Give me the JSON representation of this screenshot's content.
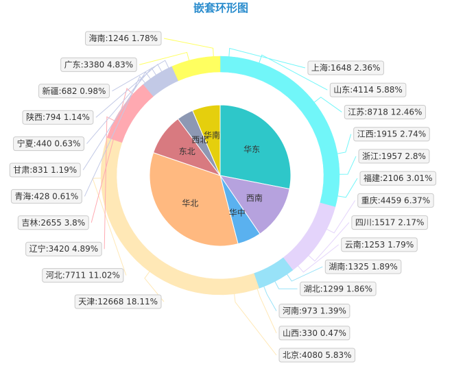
{
  "chart_data": {
    "type": "pie",
    "title": "嵌套环形图",
    "inner": [
      {
        "name": "华东",
        "value": 20255,
        "color": "#2ec7c9"
      },
      {
        "name": "西南",
        "value": 8994,
        "color": "#b6a2de"
      },
      {
        "name": "华中",
        "value": 3927,
        "color": "#5ab1ef"
      },
      {
        "name": "华北",
        "value": 24789,
        "color": "#ffb980"
      },
      {
        "name": "东北",
        "value": 6906,
        "color": "#d87a80"
      },
      {
        "name": "西北",
        "value": 2735,
        "color": "#8d98b3"
      },
      {
        "name": "华南",
        "value": 4626,
        "color": "#e5cf0d"
      }
    ],
    "outer": [
      {
        "name": "上海",
        "value": 1648,
        "percent": "2.36%",
        "label": "上海:1648 2.36%",
        "color": "#71f6f9"
      },
      {
        "name": "山东",
        "value": 4114,
        "percent": "5.88%",
        "label": "山东:4114 5.88%",
        "color": "#71f6f9"
      },
      {
        "name": "江苏",
        "value": 8718,
        "percent": "12.46%",
        "label": "江苏:8718 12.46%",
        "color": "#71f6f9"
      },
      {
        "name": "江西",
        "value": 1915,
        "percent": "2.74%",
        "label": "江西:1915 2.74%",
        "color": "#71f6f9"
      },
      {
        "name": "浙江",
        "value": 1957,
        "percent": "2.8%",
        "label": "浙江:1957 2.8%",
        "color": "#71f6f9"
      },
      {
        "name": "福建",
        "value": 2106,
        "percent": "3.01%",
        "label": "福建:2106 3.01%",
        "color": "#71f6f9"
      },
      {
        "name": "重庆",
        "value": 4459,
        "percent": "6.37%",
        "label": "重庆:4459 6.37%",
        "color": "#e4d4fb"
      },
      {
        "name": "四川",
        "value": 1517,
        "percent": "2.17%",
        "label": "四川:1517 2.17%",
        "color": "#e4d4fb"
      },
      {
        "name": "云南",
        "value": 1253,
        "percent": "1.79%",
        "label": "云南:1253 1.79%",
        "color": "#e4d4fb"
      },
      {
        "name": "湖南",
        "value": 1325,
        "percent": "1.89%",
        "label": "湖南:1325 1.89%",
        "color": "#98e2f8"
      },
      {
        "name": "湖北",
        "value": 1299,
        "percent": "1.86%",
        "label": "湖北:1299 1.86%",
        "color": "#98e2f8"
      },
      {
        "name": "河南",
        "value": 973,
        "percent": "1.39%",
        "label": "河南:973 1.39%",
        "color": "#98e2f8"
      },
      {
        "name": "山西",
        "value": 330,
        "percent": "0.47%",
        "label": "山西:330 0.47%",
        "color": "#ffe8b6"
      },
      {
        "name": "北京",
        "value": 4080,
        "percent": "5.83%",
        "label": "北京:4080 5.83%",
        "color": "#ffe8b6"
      },
      {
        "name": "天津",
        "value": 12668,
        "percent": "18.11%",
        "label": "天津:12668 18.11%",
        "color": "#ffe8b6"
      },
      {
        "name": "河北",
        "value": 7711,
        "percent": "11.02%",
        "label": "河北:7711 11.02%",
        "color": "#ffe8b6"
      },
      {
        "name": "辽宁",
        "value": 3420,
        "percent": "4.89%",
        "label": "辽宁:3420 4.89%",
        "color": "#ffa9b1"
      },
      {
        "name": "吉林",
        "value": 2655,
        "percent": "3.8%",
        "label": "吉林:2655 3.8%",
        "color": "#ffa9b1"
      },
      {
        "name": "青海",
        "value": 428,
        "percent": "0.61%",
        "label": "青海:428 0.61%",
        "color": "#c2c9e6"
      },
      {
        "name": "甘肃",
        "value": 831,
        "percent": "1.19%",
        "label": "甘肃:831 1.19%",
        "color": "#c2c9e6"
      },
      {
        "name": "宁夏",
        "value": 440,
        "percent": "0.63%",
        "label": "宁夏:440 0.63%",
        "color": "#c2c9e6"
      },
      {
        "name": "陕西",
        "value": 794,
        "percent": "1.14%",
        "label": "陕西:794 1.14%",
        "color": "#c2c9e6"
      },
      {
        "name": "新疆",
        "value": 682,
        "percent": "0.98%",
        "label": "新疆:682 0.98%",
        "color": "#c2c9e6"
      },
      {
        "name": "广东",
        "value": 3380,
        "percent": "4.83%",
        "label": "广东:3380 4.83%",
        "color": "#ffff60"
      },
      {
        "name": "海南",
        "value": 1246,
        "percent": "1.78%",
        "label": "海南:1246 1.78%",
        "color": "#ffff60"
      }
    ]
  }
}
